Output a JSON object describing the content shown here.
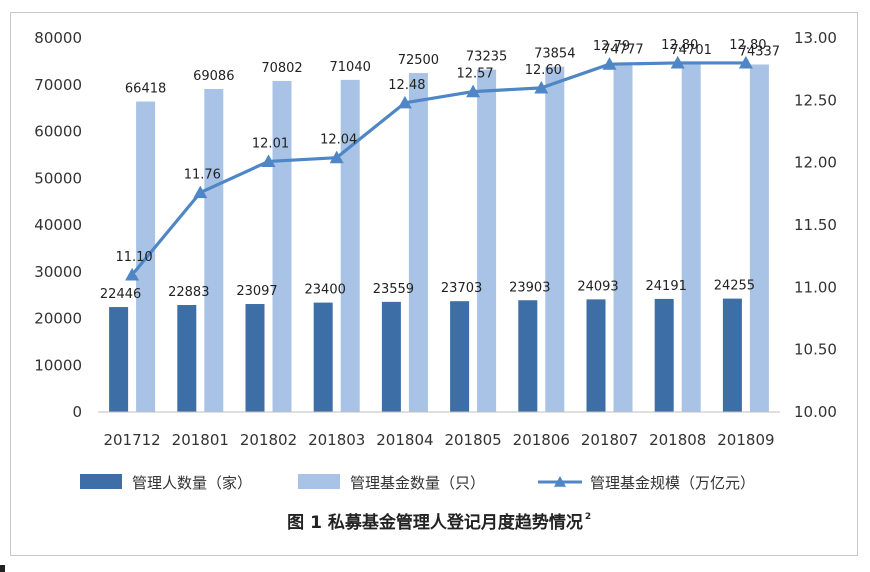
{
  "chart_data": {
    "type": "bar",
    "categories": [
      "201712",
      "201801",
      "201802",
      "201803",
      "201804",
      "201805",
      "201806",
      "201807",
      "201808",
      "201809"
    ],
    "series": [
      {
        "name": "管理人数量（家）",
        "type": "bar",
        "axis": "left",
        "color": "#3d6ea5",
        "values": [
          22446,
          22883,
          23097,
          23400,
          23559,
          23703,
          23903,
          24093,
          24191,
          24255
        ]
      },
      {
        "name": "管理基金数量（只）",
        "type": "bar",
        "axis": "left",
        "color": "#a8c3e6",
        "values": [
          66418,
          69086,
          70802,
          71040,
          72500,
          73235,
          73854,
          74777,
          74701,
          74337
        ]
      },
      {
        "name": "管理基金规模（万亿元）",
        "type": "line",
        "axis": "right",
        "color": "#4f86c6",
        "values": [
          11.1,
          11.76,
          12.01,
          12.04,
          12.48,
          12.57,
          12.6,
          12.79,
          12.8,
          12.8
        ]
      }
    ],
    "line_labels": [
      "11.10",
      "11.76",
      "12.01",
      "12.04",
      "12.48",
      "12.57",
      "12.60",
      "12.79",
      "12.80",
      "12.80"
    ],
    "ylim_left": [
      0,
      80000
    ],
    "ylim_right": [
      10.0,
      13.0
    ],
    "yticks_left": [
      "0",
      "10000",
      "20000",
      "30000",
      "40000",
      "50000",
      "60000",
      "70000",
      "80000"
    ],
    "yticks_right": [
      "10.00",
      "10.50",
      "11.00",
      "11.50",
      "12.00",
      "12.50",
      "13.00"
    ],
    "title": "图 1  私募基金管理人登记月度趋势情况",
    "title_sup": "2",
    "legend_position": "bottom",
    "grid": false
  }
}
